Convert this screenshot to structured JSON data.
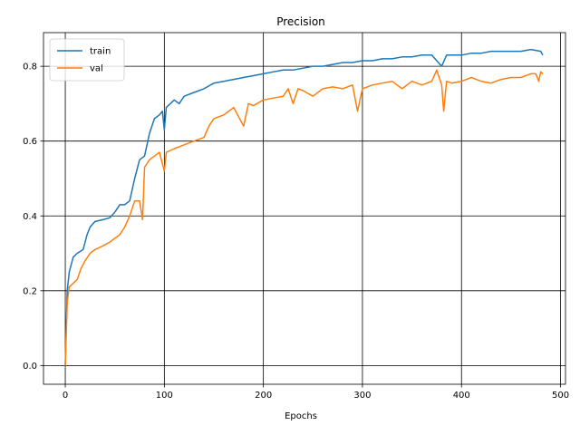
{
  "chart_data": {
    "type": "line",
    "title": "Precision",
    "xlabel": "Epochs",
    "ylabel": "",
    "xlim": [
      -22,
      505
    ],
    "ylim": [
      -0.05,
      0.89
    ],
    "xticks": [
      0,
      100,
      200,
      300,
      400,
      500
    ],
    "yticks": [
      0.0,
      0.2,
      0.4,
      0.6,
      0.8
    ],
    "xtick_labels": [
      "0",
      "100",
      "200",
      "300",
      "400",
      "500"
    ],
    "ytick_labels": [
      "0.0",
      "0.2",
      "0.4",
      "0.6",
      "0.8"
    ],
    "grid": true,
    "legend_position": "upper-left",
    "series": [
      {
        "name": "train",
        "color": "#1f77b4",
        "points": [
          [
            0,
            0.0
          ],
          [
            2,
            0.2
          ],
          [
            4,
            0.25
          ],
          [
            8,
            0.29
          ],
          [
            12,
            0.3
          ],
          [
            18,
            0.31
          ],
          [
            22,
            0.35
          ],
          [
            25,
            0.37
          ],
          [
            30,
            0.385
          ],
          [
            38,
            0.39
          ],
          [
            45,
            0.395
          ],
          [
            50,
            0.41
          ],
          [
            55,
            0.43
          ],
          [
            60,
            0.43
          ],
          [
            65,
            0.44
          ],
          [
            70,
            0.5
          ],
          [
            75,
            0.55
          ],
          [
            80,
            0.56
          ],
          [
            85,
            0.62
          ],
          [
            90,
            0.66
          ],
          [
            95,
            0.67
          ],
          [
            98,
            0.68
          ],
          [
            100,
            0.63
          ],
          [
            102,
            0.69
          ],
          [
            110,
            0.71
          ],
          [
            115,
            0.7
          ],
          [
            120,
            0.72
          ],
          [
            130,
            0.73
          ],
          [
            140,
            0.74
          ],
          [
            150,
            0.755
          ],
          [
            160,
            0.76
          ],
          [
            170,
            0.765
          ],
          [
            180,
            0.77
          ],
          [
            190,
            0.775
          ],
          [
            200,
            0.78
          ],
          [
            210,
            0.785
          ],
          [
            220,
            0.79
          ],
          [
            230,
            0.79
          ],
          [
            240,
            0.795
          ],
          [
            250,
            0.8
          ],
          [
            260,
            0.8
          ],
          [
            270,
            0.805
          ],
          [
            280,
            0.81
          ],
          [
            290,
            0.81
          ],
          [
            300,
            0.815
          ],
          [
            310,
            0.815
          ],
          [
            320,
            0.82
          ],
          [
            330,
            0.82
          ],
          [
            340,
            0.825
          ],
          [
            350,
            0.825
          ],
          [
            360,
            0.83
          ],
          [
            370,
            0.83
          ],
          [
            380,
            0.8
          ],
          [
            385,
            0.83
          ],
          [
            390,
            0.83
          ],
          [
            400,
            0.83
          ],
          [
            410,
            0.835
          ],
          [
            420,
            0.835
          ],
          [
            430,
            0.84
          ],
          [
            440,
            0.84
          ],
          [
            450,
            0.84
          ],
          [
            460,
            0.84
          ],
          [
            470,
            0.845
          ],
          [
            480,
            0.84
          ],
          [
            482,
            0.83
          ]
        ]
      },
      {
        "name": "val",
        "color": "#ff7f0e",
        "points": [
          [
            0,
            0.0
          ],
          [
            2,
            0.17
          ],
          [
            4,
            0.21
          ],
          [
            8,
            0.22
          ],
          [
            12,
            0.23
          ],
          [
            16,
            0.26
          ],
          [
            20,
            0.28
          ],
          [
            25,
            0.3
          ],
          [
            30,
            0.31
          ],
          [
            38,
            0.32
          ],
          [
            45,
            0.33
          ],
          [
            50,
            0.34
          ],
          [
            55,
            0.35
          ],
          [
            60,
            0.37
          ],
          [
            65,
            0.4
          ],
          [
            70,
            0.44
          ],
          [
            75,
            0.44
          ],
          [
            78,
            0.39
          ],
          [
            80,
            0.53
          ],
          [
            85,
            0.55
          ],
          [
            90,
            0.56
          ],
          [
            95,
            0.57
          ],
          [
            100,
            0.52
          ],
          [
            102,
            0.57
          ],
          [
            110,
            0.58
          ],
          [
            120,
            0.59
          ],
          [
            130,
            0.6
          ],
          [
            140,
            0.61
          ],
          [
            145,
            0.64
          ],
          [
            150,
            0.66
          ],
          [
            160,
            0.67
          ],
          [
            170,
            0.69
          ],
          [
            180,
            0.64
          ],
          [
            185,
            0.7
          ],
          [
            190,
            0.695
          ],
          [
            200,
            0.71
          ],
          [
            210,
            0.715
          ],
          [
            220,
            0.72
          ],
          [
            225,
            0.74
          ],
          [
            230,
            0.7
          ],
          [
            235,
            0.74
          ],
          [
            240,
            0.735
          ],
          [
            250,
            0.72
          ],
          [
            260,
            0.74
          ],
          [
            270,
            0.745
          ],
          [
            280,
            0.74
          ],
          [
            290,
            0.75
          ],
          [
            295,
            0.68
          ],
          [
            300,
            0.74
          ],
          [
            310,
            0.75
          ],
          [
            320,
            0.755
          ],
          [
            330,
            0.76
          ],
          [
            340,
            0.74
          ],
          [
            350,
            0.76
          ],
          [
            360,
            0.75
          ],
          [
            370,
            0.76
          ],
          [
            375,
            0.79
          ],
          [
            380,
            0.75
          ],
          [
            382,
            0.68
          ],
          [
            385,
            0.76
          ],
          [
            390,
            0.755
          ],
          [
            400,
            0.76
          ],
          [
            410,
            0.77
          ],
          [
            420,
            0.76
          ],
          [
            430,
            0.755
          ],
          [
            440,
            0.765
          ],
          [
            450,
            0.77
          ],
          [
            460,
            0.77
          ],
          [
            470,
            0.78
          ],
          [
            475,
            0.78
          ],
          [
            478,
            0.76
          ],
          [
            480,
            0.785
          ],
          [
            482,
            0.78
          ]
        ]
      }
    ]
  }
}
